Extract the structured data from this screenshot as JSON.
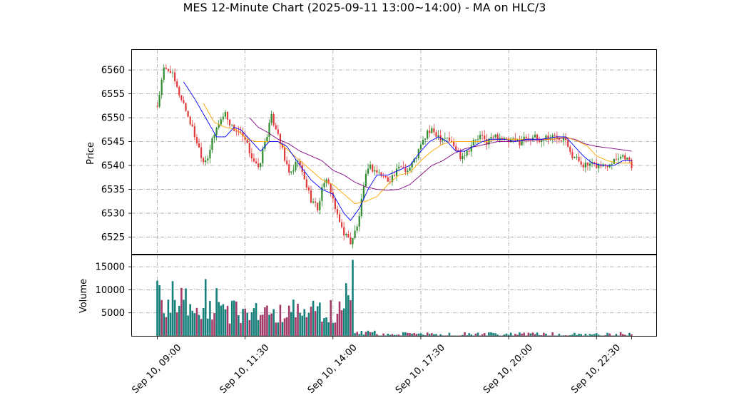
{
  "chart_data": {
    "type": "candlestick",
    "title": "MES 12-Minute Chart (2025-09-11 13:00~14:00) - MA on HLC/3",
    "colors": {
      "up": "#2e8b2e",
      "down": "#e03a3a",
      "vol_up": "#17807a",
      "vol_down": "#a43c6a",
      "ma_fast": "#0000ff",
      "ma_mid": "#ffa500",
      "ma_slow": "#800080",
      "grid": "#a0a0a0"
    },
    "x_ticks": [
      "Sep 10, 09:00",
      "Sep 10, 11:30",
      "Sep 10, 14:00",
      "Sep 10, 17:30",
      "Sep 10, 20:00",
      "Sep 10, 22:30"
    ],
    "price_panel": {
      "ylabel": "Price",
      "y_ticks": [
        6525,
        6530,
        6535,
        6540,
        6545,
        6550,
        6555,
        6560
      ],
      "ylim": [
        6521.5,
        6564.2
      ],
      "close_path": [
        [
          0,
          6552.5
        ],
        [
          3,
          6560
        ],
        [
          6,
          6560
        ],
        [
          9,
          6556
        ],
        [
          12,
          6553
        ],
        [
          15,
          6549
        ],
        [
          18,
          6545
        ],
        [
          21,
          6541
        ],
        [
          23,
          6542
        ],
        [
          25,
          6545
        ],
        [
          28,
          6549
        ],
        [
          31,
          6551
        ],
        [
          34,
          6548
        ],
        [
          37,
          6547
        ],
        [
          40,
          6545
        ],
        [
          43,
          6542
        ],
        [
          46,
          6539
        ],
        [
          49,
          6545
        ],
        [
          52,
          6550
        ],
        [
          55,
          6547
        ],
        [
          58,
          6541
        ],
        [
          61,
          6538
        ],
        [
          64,
          6541
        ],
        [
          67,
          6537
        ],
        [
          70,
          6533
        ],
        [
          73,
          6531
        ],
        [
          76,
          6537
        ],
        [
          79,
          6535
        ],
        [
          82,
          6529
        ],
        [
          85,
          6526
        ],
        [
          88,
          6524
        ],
        [
          91,
          6527
        ],
        [
          94,
          6535
        ],
        [
          96,
          6540
        ],
        [
          99,
          6539
        ],
        [
          102,
          6538
        ],
        [
          105,
          6537
        ],
        [
          108,
          6538
        ],
        [
          111,
          6540
        ],
        [
          114,
          6539
        ],
        [
          117,
          6541
        ],
        [
          120,
          6544
        ],
        [
          123,
          6547
        ],
        [
          126,
          6547
        ],
        [
          129,
          6546
        ],
        [
          132,
          6546
        ],
        [
          135,
          6544
        ],
        [
          138,
          6542
        ],
        [
          141,
          6543
        ],
        [
          144,
          6545
        ],
        [
          147,
          6546
        ],
        [
          150,
          6545
        ],
        [
          153,
          6546
        ],
        [
          156,
          6546
        ],
        [
          159,
          6545
        ],
        [
          162,
          6545
        ],
        [
          165,
          6545
        ],
        [
          168,
          6546
        ],
        [
          171,
          6546
        ],
        [
          174,
          6545
        ],
        [
          177,
          6546
        ],
        [
          180,
          6546
        ],
        [
          183,
          6546
        ],
        [
          186,
          6546
        ],
        [
          189,
          6542
        ],
        [
          192,
          6541
        ],
        [
          195,
          6540
        ],
        [
          198,
          6540
        ],
        [
          201,
          6540
        ],
        [
          204,
          6540
        ],
        [
          207,
          6541
        ],
        [
          210,
          6542
        ],
        [
          213,
          6542
        ],
        [
          216,
          6540
        ]
      ],
      "ma_fast": [
        [
          12,
          6557.5
        ],
        [
          17,
          6554
        ],
        [
          22,
          6550
        ],
        [
          27,
          6546
        ],
        [
          31,
          6546
        ],
        [
          35,
          6548
        ],
        [
          38,
          6547.5
        ],
        [
          43,
          6545
        ],
        [
          47,
          6543
        ],
        [
          51,
          6545
        ],
        [
          55,
          6545
        ],
        [
          59,
          6544
        ],
        [
          62,
          6542
        ],
        [
          65,
          6540
        ],
        [
          70,
          6537
        ],
        [
          75,
          6535
        ],
        [
          80,
          6534
        ],
        [
          85,
          6530
        ],
        [
          88,
          6528.5
        ],
        [
          92,
          6531
        ],
        [
          96,
          6535
        ],
        [
          100,
          6538
        ],
        [
          105,
          6538
        ],
        [
          110,
          6539
        ],
        [
          115,
          6540
        ],
        [
          120,
          6543
        ],
        [
          124,
          6545
        ],
        [
          128,
          6546
        ],
        [
          132,
          6545
        ],
        [
          136,
          6543
        ],
        [
          140,
          6543
        ],
        [
          144,
          6544
        ],
        [
          148,
          6545
        ],
        [
          152,
          6545.5
        ],
        [
          158,
          6545.5
        ],
        [
          163,
          6545
        ],
        [
          168,
          6545.5
        ],
        [
          175,
          6545.5
        ],
        [
          182,
          6546
        ],
        [
          186,
          6546
        ],
        [
          190,
          6544
        ],
        [
          194,
          6542
        ],
        [
          198,
          6540.5
        ],
        [
          203,
          6540
        ],
        [
          208,
          6540
        ],
        [
          212,
          6541
        ],
        [
          216,
          6541
        ]
      ],
      "ma_mid": [
        [
          21,
          6553
        ],
        [
          26,
          6549
        ],
        [
          31,
          6548
        ],
        [
          36,
          6547.5
        ],
        [
          41,
          6545.5
        ],
        [
          45,
          6545
        ],
        [
          50,
          6545
        ],
        [
          55,
          6545
        ],
        [
          60,
          6543
        ],
        [
          65,
          6541
        ],
        [
          70,
          6539
        ],
        [
          75,
          6537
        ],
        [
          80,
          6536
        ],
        [
          85,
          6534
        ],
        [
          90,
          6532
        ],
        [
          95,
          6532.5
        ],
        [
          100,
          6533.5
        ],
        [
          105,
          6536
        ],
        [
          110,
          6538
        ],
        [
          115,
          6538.5
        ],
        [
          120,
          6541
        ],
        [
          125,
          6543
        ],
        [
          130,
          6544.5
        ],
        [
          135,
          6545
        ],
        [
          140,
          6545
        ],
        [
          145,
          6545
        ],
        [
          150,
          6545
        ],
        [
          155,
          6545.5
        ],
        [
          160,
          6545.5
        ],
        [
          165,
          6545.5
        ],
        [
          170,
          6545.5
        ],
        [
          175,
          6545.5
        ],
        [
          180,
          6545.5
        ],
        [
          186,
          6546
        ],
        [
          192,
          6545
        ],
        [
          196,
          6544
        ],
        [
          200,
          6542
        ],
        [
          205,
          6541
        ],
        [
          210,
          6540.5
        ],
        [
          216,
          6540.5
        ]
      ],
      "ma_slow": [
        [
          42,
          6550
        ],
        [
          46,
          6548
        ],
        [
          50,
          6547
        ],
        [
          55,
          6545.5
        ],
        [
          60,
          6544.5
        ],
        [
          65,
          6543
        ],
        [
          70,
          6542
        ],
        [
          75,
          6541
        ],
        [
          80,
          6539
        ],
        [
          85,
          6538
        ],
        [
          90,
          6536.5
        ],
        [
          95,
          6535.5
        ],
        [
          100,
          6535
        ],
        [
          105,
          6534.8
        ],
        [
          110,
          6535
        ],
        [
          115,
          6536
        ],
        [
          120,
          6538
        ],
        [
          125,
          6540
        ],
        [
          130,
          6541
        ],
        [
          135,
          6542.5
        ],
        [
          140,
          6543.5
        ],
        [
          145,
          6544
        ],
        [
          150,
          6544.5
        ],
        [
          155,
          6545
        ],
        [
          160,
          6545
        ],
        [
          165,
          6545.2
        ],
        [
          170,
          6545.3
        ],
        [
          175,
          6545.4
        ],
        [
          180,
          6545.5
        ],
        [
          186,
          6545.8
        ],
        [
          190,
          6545.5
        ],
        [
          195,
          6544.5
        ],
        [
          200,
          6544
        ],
        [
          205,
          6543.7
        ],
        [
          210,
          6543.4
        ],
        [
          216,
          6543
        ]
      ]
    },
    "volume_panel": {
      "ylabel": "Volume",
      "y_ticks": [
        5000,
        10000,
        15000
      ],
      "ylim": [
        0,
        17500
      ],
      "sessions": [
        {
          "from": 0,
          "to": 85,
          "base": 5200,
          "amp": 2800
        },
        {
          "from": 86,
          "to": 88,
          "base": 9500,
          "amp": 2500
        },
        {
          "from": 89,
          "to": 89,
          "base": 16500,
          "amp": 0
        },
        {
          "from": 90,
          "to": 100,
          "base": 700,
          "amp": 500
        },
        {
          "from": 101,
          "to": 216,
          "base": 300,
          "amp": 500
        }
      ]
    }
  }
}
